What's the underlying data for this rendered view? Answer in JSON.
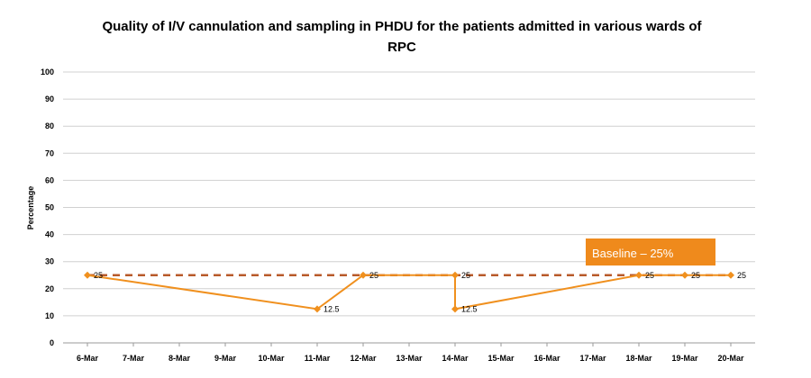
{
  "chart_data": {
    "type": "line",
    "title_line1": "Quality of I/V cannulation and sampling in PHDU for the patients admitted in various wards of",
    "title_line2": "RPC",
    "ylabel": "Percentage",
    "xlabel": "",
    "ylim": [
      0,
      100
    ],
    "yticks": [
      0,
      10,
      20,
      30,
      40,
      50,
      60,
      70,
      80,
      90,
      100
    ],
    "categories": [
      "6-Mar",
      "7-Mar",
      "8-Mar",
      "9-Mar",
      "10-Mar",
      "11-Mar",
      "12-Mar",
      "13-Mar",
      "14-Mar",
      "15-Mar",
      "16-Mar",
      "17-Mar",
      "18-Mar",
      "19-Mar",
      "20-Mar"
    ],
    "series": [
      {
        "color": "#f0901e",
        "points": [
          {
            "x": "6-Mar",
            "y": 25,
            "label": "25"
          },
          {
            "x": "11-Mar",
            "y": 12.5,
            "label": "12.5"
          },
          {
            "x": "12-Mar",
            "y": 25,
            "label": "25"
          },
          {
            "x": "14-Mar",
            "y": 25,
            "label": "25"
          },
          {
            "x": "14-Mar",
            "y": 12.5,
            "label": "12.5"
          },
          {
            "x": "18-Mar",
            "y": 25,
            "label": "25"
          },
          {
            "x": "19-Mar",
            "y": 25,
            "label": "25"
          },
          {
            "x": "20-Mar",
            "y": 25,
            "label": "25"
          }
        ]
      }
    ],
    "baseline": {
      "value": 25,
      "label": "Baseline – 25%",
      "color": "#b85a2a",
      "box_color": "#ef8a1c",
      "style": "dashed"
    },
    "grid": true,
    "legend": "none"
  }
}
